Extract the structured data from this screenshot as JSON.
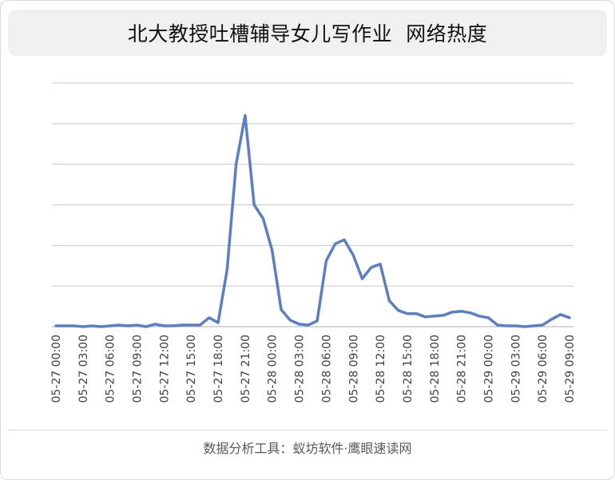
{
  "chart_data": {
    "type": "line",
    "title": "北大教授吐槽辅导女儿写作业  网络热度",
    "xlabel": "",
    "ylabel": "",
    "y_tick_labels_shown": false,
    "grid": true,
    "legend": "none",
    "color": "#5b7fc7",
    "ylim": [
      0,
      300
    ],
    "x_tick_labels": [
      "05-27 00:00",
      "05-27 03:00",
      "05-27 06:00",
      "05-27 09:00",
      "05-27 12:00",
      "05-27 15:00",
      "05-27 18:00",
      "05-27 21:00",
      "05-28 00:00",
      "05-28 03:00",
      "05-28 06:00",
      "05-28 09:00",
      "05-28 12:00",
      "05-28 15:00",
      "05-28 18:00",
      "05-28 21:00",
      "05-29 00:00",
      "05-29 03:00",
      "05-29 06:00",
      "05-29 09:00"
    ],
    "series": [
      {
        "values": [
          1,
          1,
          1,
          0,
          1,
          0,
          1,
          2,
          1,
          2,
          0,
          3,
          1,
          1,
          2,
          2,
          2,
          11,
          5,
          70,
          200,
          260,
          150,
          133,
          94,
          21,
          8,
          3,
          2,
          7,
          81,
          102,
          107,
          88,
          59,
          73,
          77,
          32,
          20,
          16,
          16,
          12,
          13,
          14,
          18,
          19,
          17,
          13,
          11,
          2,
          1,
          1,
          0,
          1,
          2,
          9,
          15,
          11
        ]
      }
    ]
  },
  "footer": {
    "source": "数据分析工具：蚁坊软件·鹰眼速读网"
  }
}
